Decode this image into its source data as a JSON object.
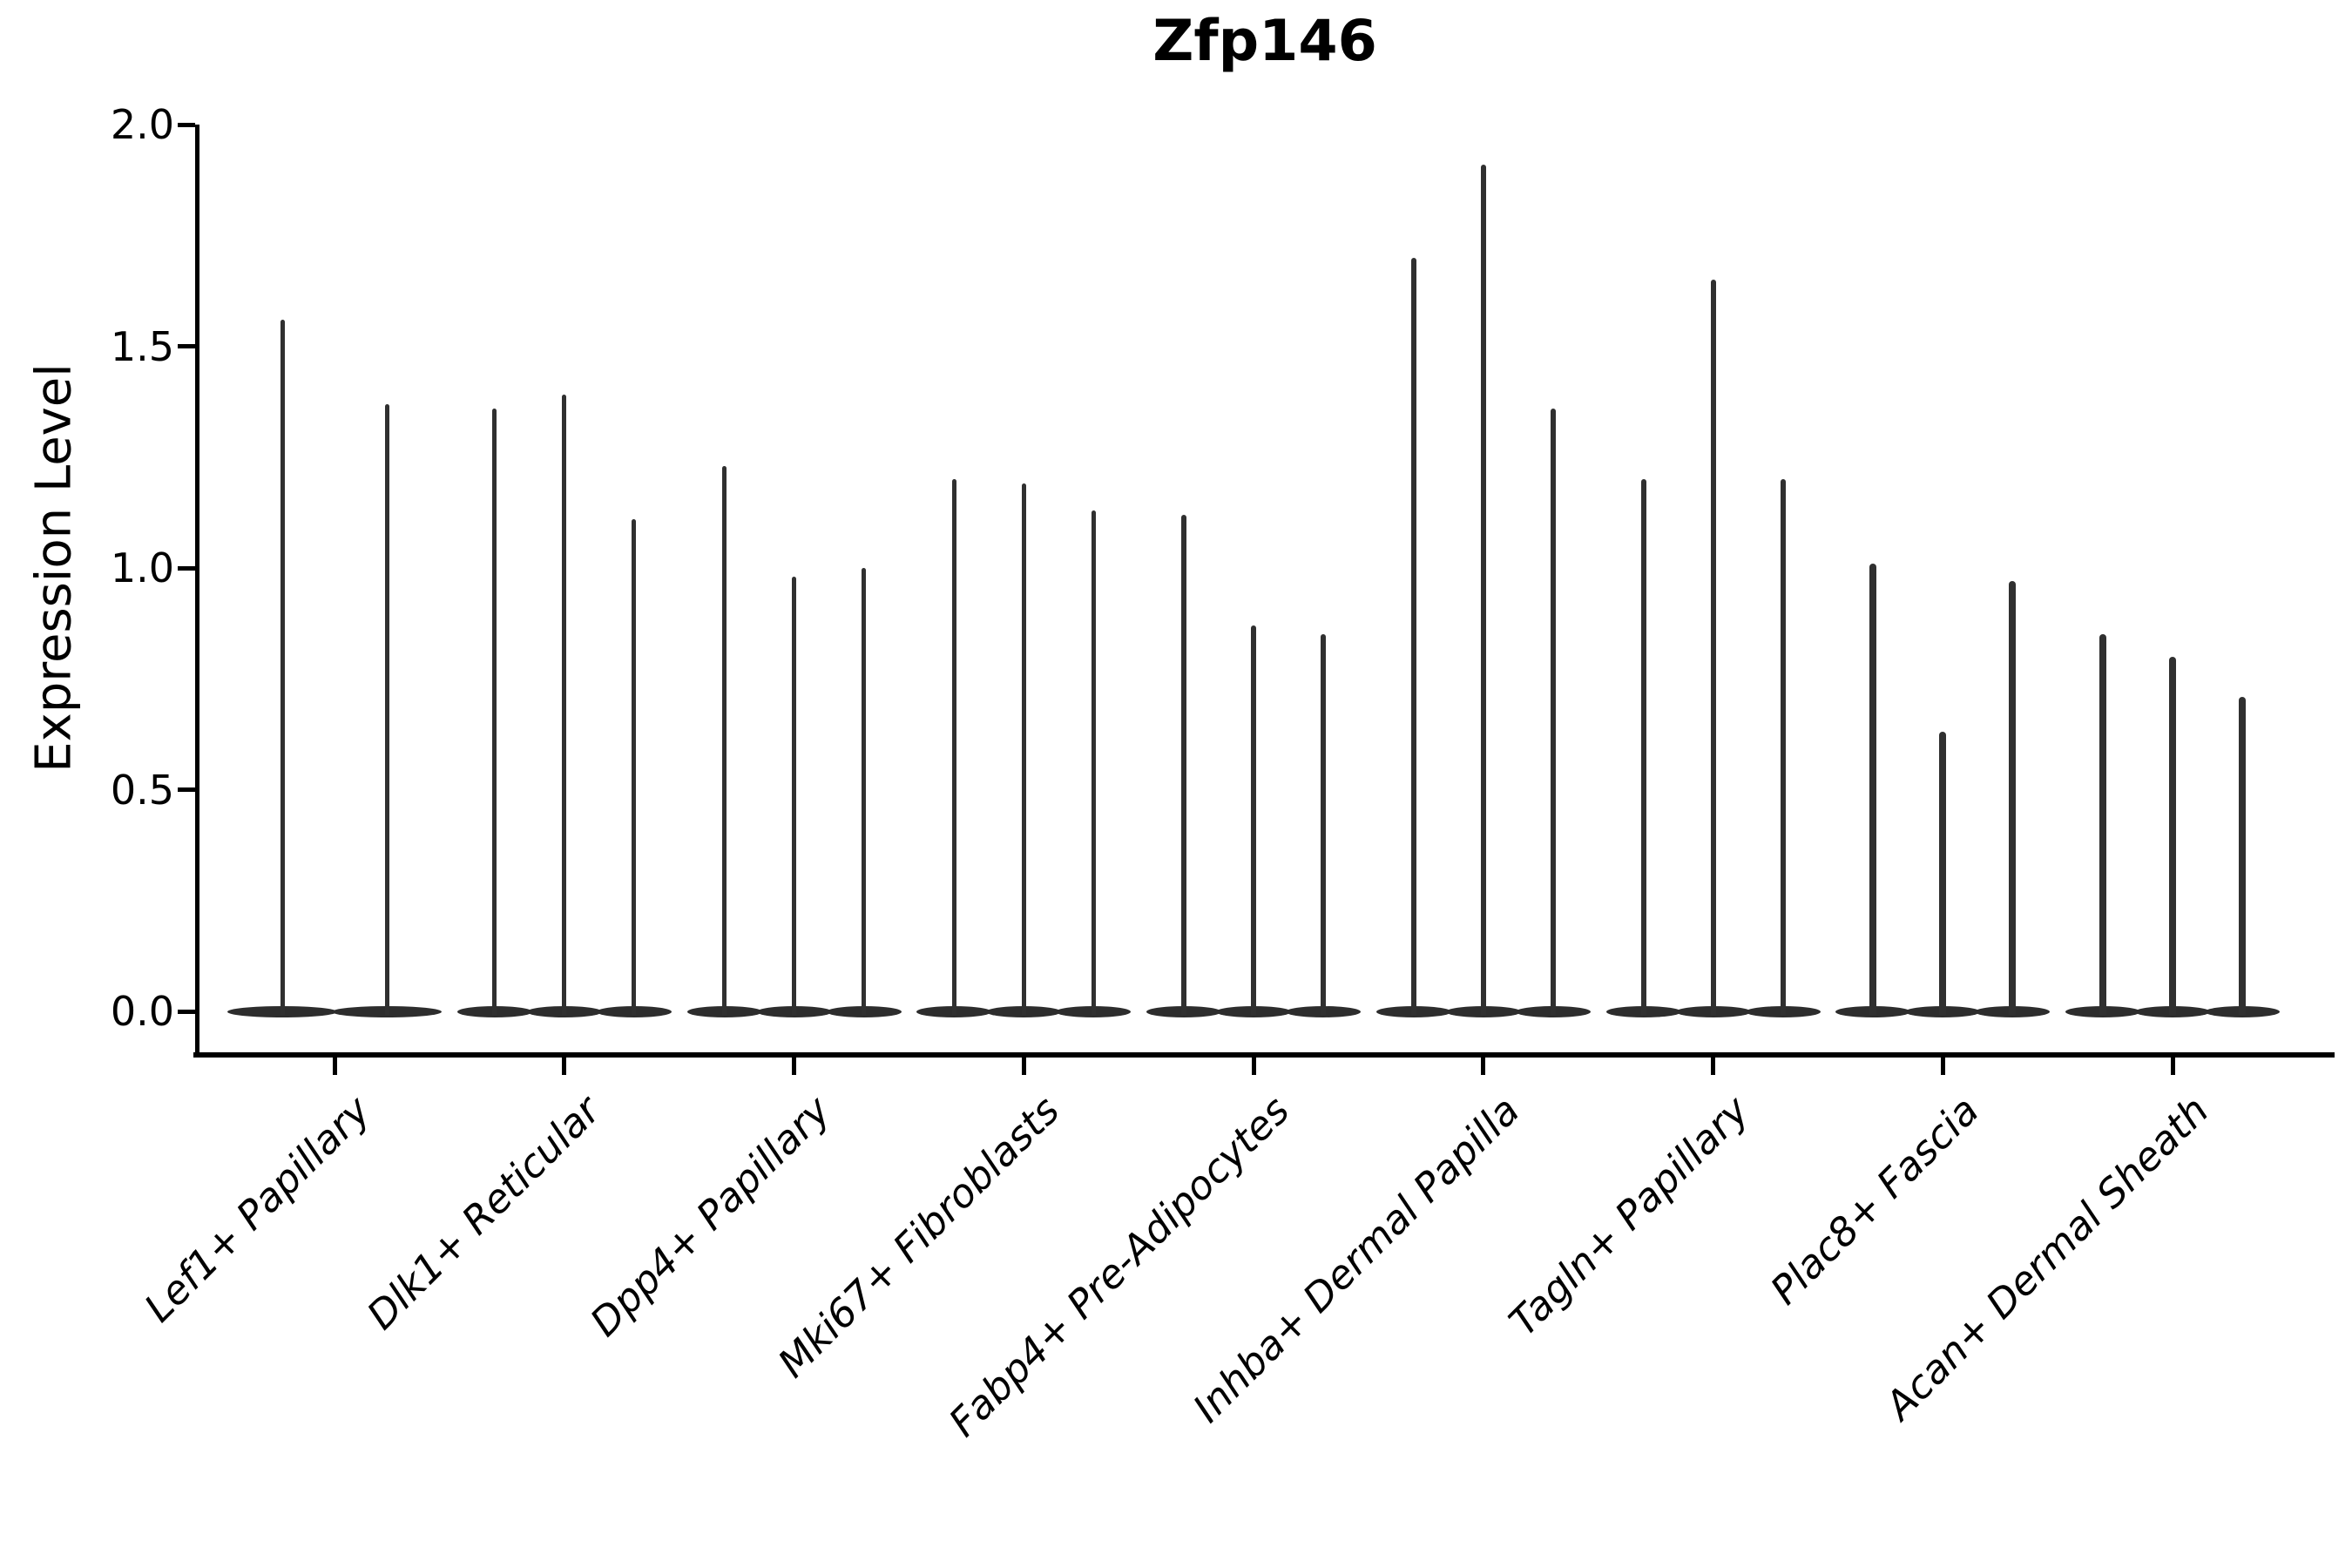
{
  "title": "Zfp146",
  "y_axis": {
    "label": "Expression Level"
  },
  "chart_data": {
    "type": "violin",
    "title": "Zfp146",
    "xlabel": "",
    "ylabel": "Expression Level",
    "ylim": [
      0,
      2.0
    ],
    "yticks": [
      0.0,
      0.5,
      1.0,
      1.5,
      2.0
    ],
    "grid": false,
    "legend": "none",
    "categories": [
      "Lef1+ Papillary",
      "Dlk1+ Reticular",
      "Dpp4+ Papillary",
      "Mki67+ Fibroblasts",
      "Fabp4+ Pre-Adipocytes",
      "Inhba+ Dermal Papilla",
      "Tagln+ Papillary",
      "Plac8+ Fascia",
      "Acan+ Dermal Sheath"
    ],
    "groups": [
      {
        "category": "Lef1+ Papillary",
        "violin_maxes": [
          1.56,
          1.37
        ]
      },
      {
        "category": "Dlk1+ Reticular",
        "violin_maxes": [
          1.36,
          1.39,
          1.11
        ]
      },
      {
        "category": "Dpp4+ Papillary",
        "violin_maxes": [
          1.23,
          0.98,
          1.0
        ]
      },
      {
        "category": "Mki67+ Fibroblasts",
        "violin_maxes": [
          1.2,
          1.19,
          1.13
        ]
      },
      {
        "category": "Fabp4+ Pre-Adipocytes",
        "violin_maxes": [
          1.12,
          0.87,
          0.85
        ]
      },
      {
        "category": "Inhba+ Dermal Papilla",
        "violin_maxes": [
          1.7,
          1.91,
          1.36
        ]
      },
      {
        "category": "Tagln+ Papillary",
        "violin_maxes": [
          1.2,
          1.65,
          1.2
        ]
      },
      {
        "category": "Plac8+ Fascia",
        "violin_maxes": [
          1.01,
          0.63,
          0.97
        ]
      },
      {
        "category": "Acan+ Dermal Sheath",
        "violin_maxes": [
          0.85,
          0.8,
          0.71
        ]
      }
    ],
    "colors": {
      "violin": "#303030",
      "axis": "#000000",
      "text": "#000000"
    }
  }
}
